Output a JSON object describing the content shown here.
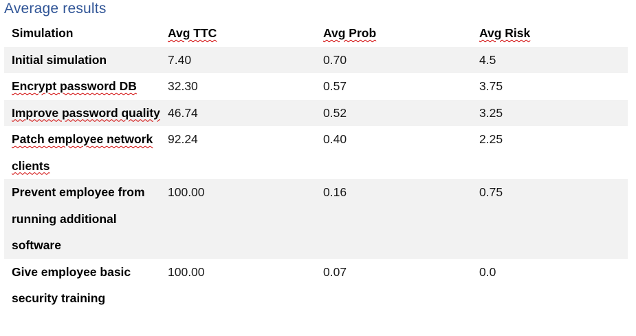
{
  "heading": "Average results",
  "table": {
    "headers": [
      "Simulation",
      "Avg TTC",
      "Avg Prob",
      "Avg Risk"
    ],
    "rows": [
      {
        "simulation": "Initial simulation",
        "ttc": "7.40",
        "prob": "0.70",
        "risk": "4.5",
        "shaded": true
      },
      {
        "simulation": "Encrypt password DB",
        "ttc": "32.30",
        "prob": "0.57",
        "risk": "3.75",
        "shaded": false
      },
      {
        "simulation": "Improve password quality",
        "ttc": "46.74",
        "prob": "0.52",
        "risk": "3.25",
        "shaded": true
      },
      {
        "simulation": "Patch employee network clients",
        "ttc": "92.24",
        "prob": "0.40",
        "risk": "2.25",
        "shaded": false
      },
      {
        "simulation": "Prevent employee from running additional software",
        "ttc": "100.00",
        "prob": "0.16",
        "risk": "0.75",
        "shaded": true
      },
      {
        "simulation": "Give employee basic security training",
        "ttc": "100.00",
        "prob": "0.07",
        "risk": "0.0",
        "shaded": false
      }
    ]
  }
}
